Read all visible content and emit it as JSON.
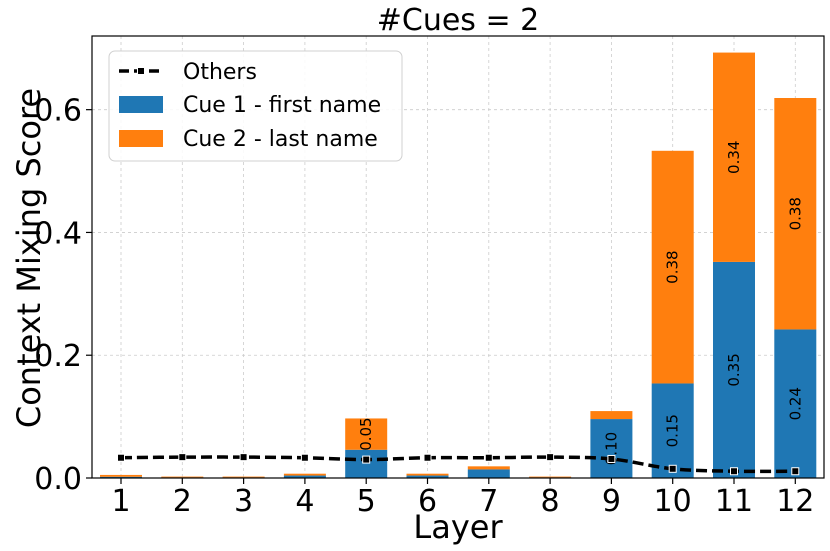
{
  "chart_data": {
    "type": "bar",
    "stacked": true,
    "title": "#Cues = 2",
    "xlabel": "Layer",
    "ylabel": "Context Mixing Score",
    "categories": [
      "1",
      "2",
      "3",
      "4",
      "5",
      "6",
      "7",
      "8",
      "9",
      "10",
      "11",
      "12"
    ],
    "ylim": [
      0,
      0.72
    ],
    "yticks": [
      "0.0",
      "0.2",
      "0.4",
      "0.6"
    ],
    "grid": true,
    "legend_position": "top-left",
    "series": [
      {
        "name": "Cue 1 - first name",
        "kind": "bar",
        "color": "#1f77b4",
        "values": [
          0.002,
          0.001,
          0.001,
          0.004,
          0.046,
          0.004,
          0.014,
          0.001,
          0.096,
          0.154,
          0.352,
          0.242
        ],
        "labels": [
          "",
          "",
          "",
          "",
          "",
          "",
          "",
          "",
          "0.10",
          "0.15",
          "0.35",
          "0.24"
        ]
      },
      {
        "name": "Cue 2 - last name",
        "kind": "bar",
        "color": "#ff7f0e",
        "values": [
          0.003,
          0.001,
          0.001,
          0.003,
          0.051,
          0.003,
          0.005,
          0.001,
          0.013,
          0.379,
          0.341,
          0.377
        ],
        "labels": [
          "",
          "",
          "",
          "",
          "0.05",
          "",
          "",
          "",
          "",
          "0.38",
          "0.34",
          "0.38"
        ]
      },
      {
        "name": "Others",
        "kind": "line",
        "style": "dashed",
        "marker": "square",
        "color": "#000000",
        "values": [
          0.033,
          0.034,
          0.034,
          0.033,
          0.03,
          0.033,
          0.033,
          0.034,
          0.031,
          0.015,
          0.011,
          0.011
        ]
      }
    ]
  }
}
